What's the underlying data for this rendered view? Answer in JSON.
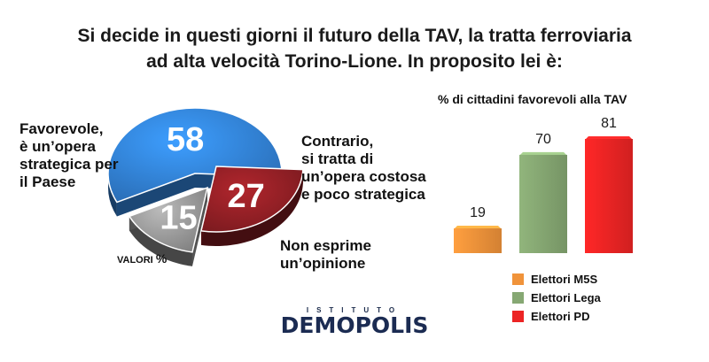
{
  "title": {
    "line1": "Si decide in questi giorni il futuro della TAV, la tratta ferroviaria",
    "line2": "ad alta velocità Torino-Lione. In proposito lei è:"
  },
  "chart_data": [
    {
      "type": "pie",
      "unit_label": "VALORI",
      "unit_symbol": "%",
      "slices": [
        {
          "label": "Favorevole,\nè un’opera\nstrategica per\nil Paese",
          "value": 58,
          "color": "#2a6db5"
        },
        {
          "label": "Contrario,\nsi tratta di\nun’opera costosa\ne poco strategica",
          "value": 27,
          "color": "#7a1a1f"
        },
        {
          "label": "Non esprime\nun’opinione",
          "value": 15,
          "color": "#808080"
        }
      ]
    },
    {
      "type": "bar",
      "title": "% di cittadini favorevoli alla TAV",
      "categories": [
        "Elettori M5S",
        "Elettori Lega",
        "Elettori PD"
      ],
      "values": [
        19,
        70,
        81
      ],
      "colors": [
        "#f0933a",
        "#86a873",
        "#ec2424"
      ],
      "ylim": [
        0,
        81
      ]
    }
  ],
  "logo": {
    "top": "ISTITUTO",
    "main": "DEMOPOLIS"
  }
}
